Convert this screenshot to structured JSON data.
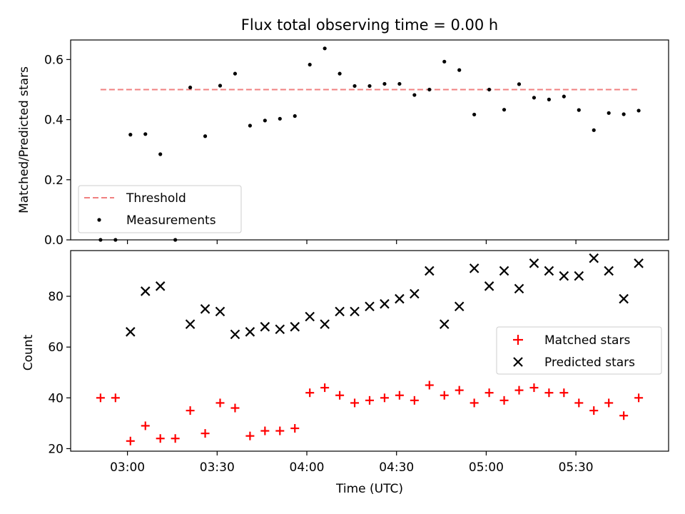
{
  "chart_data": {
    "title": "Flux total observing time = 0.00 h",
    "xlabel": "Time (UTC)",
    "x_tick_labels": [
      "03:00",
      "03:30",
      "04:00",
      "04:30",
      "05:00",
      "05:30"
    ],
    "x_ticks": [
      "03:00",
      "03:30",
      "04:00",
      "04:30",
      "05:00",
      "05:30"
    ],
    "xlim": [
      "02:41",
      "05:61"
    ],
    "panels": [
      {
        "type": "scatter",
        "ylabel": "Matched/Predicted stars",
        "ylim": [
          0,
          0.665
        ],
        "y_tick_labels": [
          "0.0",
          "0.2",
          "0.4",
          "0.6"
        ],
        "y_ticks": [
          0,
          0.2,
          0.4,
          0.6
        ],
        "legend": {
          "location": "lower-left",
          "entries": [
            "Threshold",
            "Measurements"
          ]
        },
        "series": [
          {
            "name": "Threshold",
            "style": "dashed-line",
            "color": "#f08080",
            "x": [
              "02:51",
              "05:51"
            ],
            "y": [
              0.5,
              0.5
            ]
          },
          {
            "name": "Measurements",
            "style": "dot",
            "color": "#000000",
            "x": [
              "02:51",
              "02:56",
              "03:01",
              "03:06",
              "03:11",
              "03:16",
              "03:21",
              "03:26",
              "03:31",
              "03:36",
              "03:41",
              "03:46",
              "03:51",
              "03:56",
              "04:01",
              "04:06",
              "04:11",
              "04:16",
              "04:21",
              "04:26",
              "04:31",
              "04:36",
              "04:41",
              "04:46",
              "04:51",
              "04:56",
              "05:01",
              "05:06",
              "05:11",
              "05:16",
              "05:21",
              "05:26",
              "05:31",
              "05:36",
              "05:41",
              "05:46",
              "05:51"
            ],
            "y": [
              0.0,
              0.0,
              0.35,
              0.352,
              0.285,
              0.0,
              0.507,
              0.345,
              0.513,
              0.553,
              0.38,
              0.397,
              0.403,
              0.412,
              0.583,
              0.637,
              0.553,
              0.512,
              0.512,
              0.519,
              0.519,
              0.482,
              0.5,
              0.593,
              0.565,
              0.417,
              0.5,
              0.433,
              0.518,
              0.473,
              0.467,
              0.477,
              0.432,
              0.365,
              0.422,
              0.418,
              0.43
            ]
          }
        ]
      },
      {
        "type": "scatter",
        "ylabel": "Count",
        "ylim": [
          19,
          98
        ],
        "y_tick_labels": [
          "20",
          "40",
          "60",
          "80"
        ],
        "y_ticks": [
          20,
          40,
          60,
          80
        ],
        "legend": {
          "location": "center-right",
          "entries": [
            "Matched stars",
            "Predicted stars"
          ]
        },
        "series": [
          {
            "name": "Matched stars",
            "marker": "plus",
            "color": "#ff0000",
            "x": [
              "02:51",
              "02:56",
              "03:01",
              "03:06",
              "03:11",
              "03:16",
              "03:21",
              "03:26",
              "03:31",
              "03:36",
              "03:41",
              "03:46",
              "03:51",
              "03:56",
              "04:01",
              "04:06",
              "04:11",
              "04:16",
              "04:21",
              "04:26",
              "04:31",
              "04:36",
              "04:41",
              "04:46",
              "04:51",
              "04:56",
              "05:01",
              "05:06",
              "05:11",
              "05:16",
              "05:21",
              "05:26",
              "05:31",
              "05:36",
              "05:41",
              "05:46",
              "05:51"
            ],
            "y": [
              40,
              40,
              23,
              29,
              24,
              24,
              35,
              26,
              38,
              36,
              25,
              27,
              27,
              28,
              42,
              44,
              41,
              38,
              39,
              40,
              41,
              39,
              45,
              41,
              43,
              38,
              42,
              39,
              43,
              44,
              42,
              42,
              38,
              35,
              38,
              33,
              40
            ]
          },
          {
            "name": "Predicted stars",
            "marker": "x",
            "color": "#000000",
            "x": [
              "03:01",
              "03:06",
              "03:11",
              "03:21",
              "03:26",
              "03:31",
              "03:36",
              "03:41",
              "03:46",
              "03:51",
              "03:56",
              "04:01",
              "04:06",
              "04:11",
              "04:16",
              "04:21",
              "04:26",
              "04:31",
              "04:36",
              "04:41",
              "04:46",
              "04:51",
              "04:56",
              "05:01",
              "05:06",
              "05:11",
              "05:16",
              "05:21",
              "05:26",
              "05:31",
              "05:36",
              "05:41",
              "05:46",
              "05:51"
            ],
            "y": [
              66,
              82,
              84,
              69,
              75,
              74,
              65,
              66,
              68,
              67,
              68,
              72,
              69,
              74,
              74,
              76,
              77,
              79,
              81,
              90,
              69,
              76,
              91,
              84,
              90,
              83,
              93,
              90,
              88,
              88,
              95,
              90,
              79,
              93
            ]
          }
        ]
      }
    ]
  }
}
